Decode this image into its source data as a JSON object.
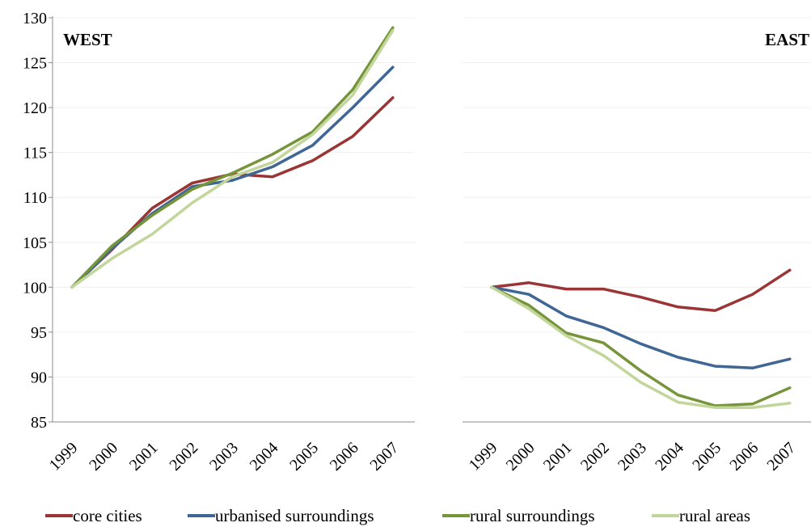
{
  "chart_data": {
    "type": "line",
    "ylim": [
      85,
      130
    ],
    "yticks": [
      "85",
      "90",
      "95",
      "100",
      "105",
      "110",
      "115",
      "120",
      "125",
      "130"
    ],
    "categories": [
      "1999",
      "2000",
      "2001",
      "2002",
      "2003",
      "2004",
      "2005",
      "2006",
      "2007"
    ],
    "grid": "horizontal",
    "legend_position": "bottom",
    "colors": {
      "core cities": "#9b3535",
      "urbanised surroundings": "#3f6694",
      "rural surroundings": "#76953a",
      "rural areas": "#c2d69b"
    },
    "panels": [
      {
        "title": "WEST",
        "series": [
          {
            "name": "core cities",
            "values": [
              100,
              104.2,
              108.8,
              111.6,
              112.6,
              112.3,
              114.1,
              116.8,
              121.1
            ]
          },
          {
            "name": "urbanised surroundings",
            "values": [
              100,
              104.3,
              108.2,
              111.2,
              111.9,
              113.4,
              115.8,
              120,
              124.5
            ]
          },
          {
            "name": "rural surroundings",
            "values": [
              100,
              104.6,
              108,
              110.9,
              112.7,
              114.8,
              117.3,
              122,
              128.9
            ]
          },
          {
            "name": "rural areas",
            "values": [
              100,
              103.2,
              105.9,
              109.4,
              112.3,
              113.9,
              117,
              121.4,
              128.6
            ]
          }
        ]
      },
      {
        "title": "EAST",
        "series": [
          {
            "name": "core cities",
            "values": [
              100,
              100.5,
              99.8,
              99.8,
              98.9,
              97.8,
              97.4,
              99.2,
              101.9
            ]
          },
          {
            "name": "urbanised surroundings",
            "values": [
              100,
              99.2,
              96.8,
              95.5,
              93.7,
              92.2,
              91.2,
              91,
              92
            ]
          },
          {
            "name": "rural surroundings",
            "values": [
              100,
              98,
              94.9,
              93.8,
              90.7,
              88,
              86.8,
              87,
              88.8
            ]
          },
          {
            "name": "rural areas",
            "values": [
              100,
              97.6,
              94.6,
              92.4,
              89.4,
              87.2,
              86.6,
              86.6,
              87.1
            ]
          }
        ]
      }
    ]
  }
}
